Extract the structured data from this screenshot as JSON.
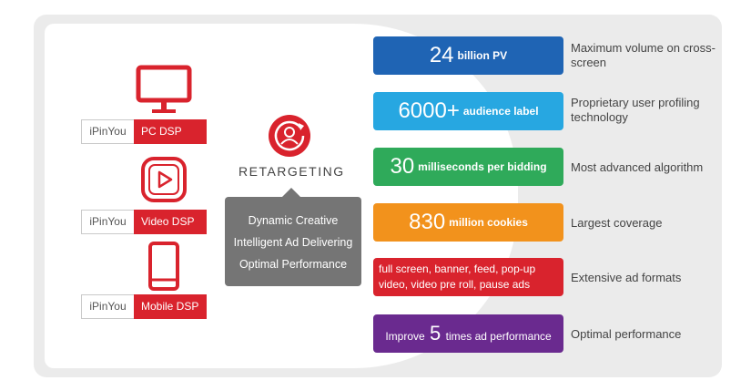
{
  "products": [
    {
      "brand": "iPinYou",
      "name": "PC DSP",
      "icon": "monitor-icon"
    },
    {
      "brand": "iPinYou",
      "name": "Video DSP",
      "icon": "play-icon"
    },
    {
      "brand": "iPinYou",
      "name": "Mobile DSP",
      "icon": "phone-icon"
    }
  ],
  "retargeting": {
    "label": "RETARGETING",
    "icon": "retargeting-user-icon",
    "features": [
      "Dynamic Creative",
      "Intelligent Ad Delivering",
      "Optimal Performance"
    ]
  },
  "stats": [
    {
      "big": "24",
      "small": "billion PV",
      "desc": "Maximum volume on cross-screen",
      "color": "#1f64b4"
    },
    {
      "big": "6000+",
      "small": "audience label",
      "desc": "Proprietary user profiling technology",
      "color": "#27a7e1"
    },
    {
      "big": "30",
      "small": "milliseconds per bidding",
      "desc": "Most advanced algorithm",
      "color": "#2faa5a"
    },
    {
      "big": "830",
      "small": "million cookies",
      "desc": "Largest coverage",
      "color": "#f2921c"
    },
    {
      "text": "full screen, banner, feed, pop-up video, video pre roll, pause ads",
      "desc": "Extensive ad formats",
      "color": "#d9232d"
    },
    {
      "pre": "Improve",
      "big": "5",
      "post": "times ad performance",
      "desc": "Optimal performance",
      "color": "#6a2a8f"
    }
  ]
}
